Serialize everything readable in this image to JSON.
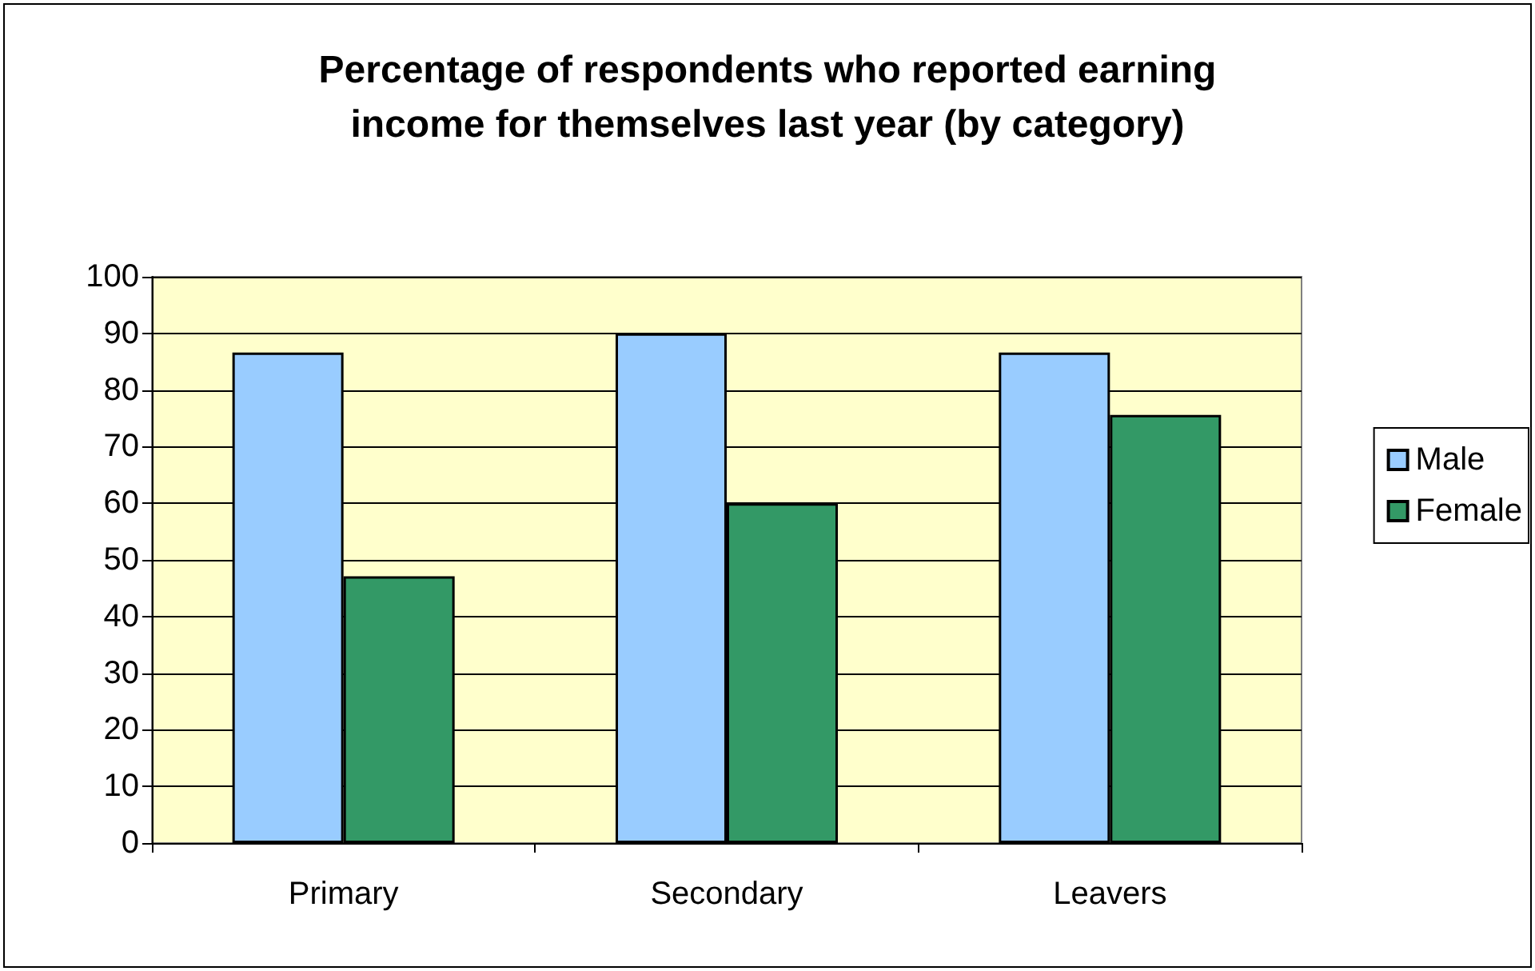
{
  "chart_data": {
    "type": "bar",
    "title": "Percentage of respondents who reported earning\nincome for themselves last year (by category)",
    "categories": [
      "Primary",
      "Secondary",
      "Leavers"
    ],
    "series": [
      {
        "name": "Male",
        "color": "#99ccff",
        "values": [
          86.6,
          90,
          86.6
        ]
      },
      {
        "name": "Female",
        "color": "#339966",
        "values": [
          47.1,
          60,
          75.6
        ]
      }
    ],
    "ylim": [
      0,
      100
    ],
    "yticks": [
      0,
      10,
      20,
      30,
      40,
      50,
      60,
      70,
      80,
      90,
      100
    ],
    "grid": "y",
    "legend": "right"
  }
}
